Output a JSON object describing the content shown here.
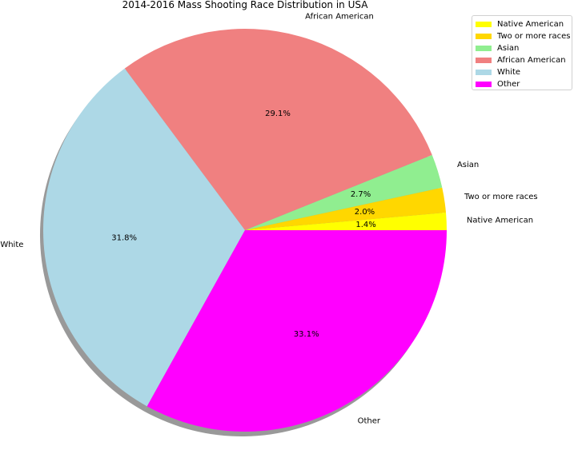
{
  "chart_data": {
    "type": "pie",
    "title": "2014-2016 Mass Shooting Race Distribution in USA",
    "slices": [
      {
        "label": "Native American",
        "percent": 1.4,
        "percent_label": "1.4%",
        "color": "#ffff00"
      },
      {
        "label": "Two or more races",
        "percent": 2.0,
        "percent_label": "2.0%",
        "color": "#ffd700"
      },
      {
        "label": "Asian",
        "percent": 2.7,
        "percent_label": "2.7%",
        "color": "#90ee90"
      },
      {
        "label": "African American",
        "percent": 29.1,
        "percent_label": "29.1%",
        "color": "#f08080"
      },
      {
        "label": "White",
        "percent": 31.8,
        "percent_label": "31.8%",
        "color": "#add8e6"
      },
      {
        "label": "Other",
        "percent": 33.1,
        "percent_label": "33.1%",
        "color": "#ff00ff"
      }
    ],
    "start_angle_deg": 0,
    "counterclockwise": true,
    "shadow": true,
    "legend_position": "top-right"
  }
}
